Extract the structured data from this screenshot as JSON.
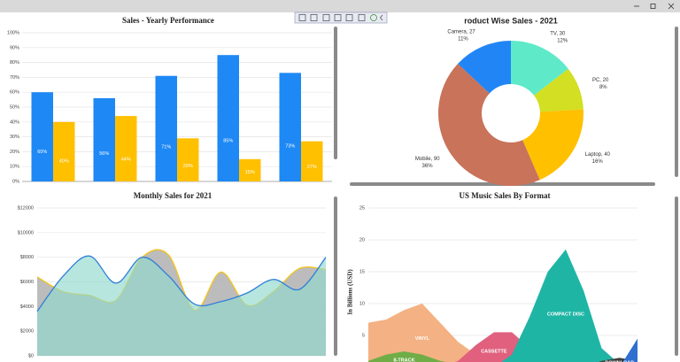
{
  "chart_data": [
    {
      "type": "bar",
      "title": "Sales - Yearly Performance",
      "categories": [
        null,
        null,
        null,
        null,
        null
      ],
      "series": [
        {
          "color": "#1e88f5",
          "values": [
            60,
            56,
            71,
            85,
            73
          ],
          "value_labels": [
            "60%",
            "56%",
            "71%",
            "85%",
            "73%"
          ]
        },
        {
          "color": "#ffc000",
          "values": [
            40,
            44,
            29,
            15,
            27
          ],
          "value_labels": [
            "40%",
            "44%",
            "29%",
            "15%",
            "27%"
          ]
        }
      ],
      "ylim": [
        0,
        100
      ],
      "yticks": [
        {
          "value": 0,
          "label": "0%"
        },
        {
          "value": 10,
          "label": "10%"
        },
        {
          "value": 20,
          "label": "20%"
        },
        {
          "value": 30,
          "label": "30%"
        },
        {
          "value": 40,
          "label": "40%"
        },
        {
          "value": 50,
          "label": "50%"
        },
        {
          "value": 60,
          "label": "60%"
        },
        {
          "value": 70,
          "label": "70%"
        },
        {
          "value": 80,
          "label": "80%"
        },
        {
          "value": 90,
          "label": "90%"
        },
        {
          "value": 100,
          "label": "100%"
        }
      ],
      "grid": true
    },
    {
      "type": "pie",
      "title": "roduct Wise Sales - 2021",
      "donut": true,
      "values": [
        30,
        20,
        40,
        90,
        27
      ],
      "value_labels": [
        "TV, 30",
        "PC, 20",
        "Laptop, 40",
        "Mobile, 90",
        "Camera, 27"
      ],
      "percents": [
        12,
        8,
        16,
        36,
        11
      ],
      "percent_labels": [
        "12%",
        "8%",
        "16%",
        "36%",
        "11%"
      ],
      "colors": [
        "#5eeac9",
        "#d2df22",
        "#ffc000",
        "#c8735a",
        "#2185f5"
      ]
    },
    {
      "type": "spline-area",
      "title": "Monthly Sales for 2021",
      "categories": [
        null,
        null,
        null,
        null,
        null,
        null,
        null,
        null,
        null,
        null,
        null,
        null
      ],
      "series": [
        {
          "color": "#f5c518",
          "fill": "#b5b5b5",
          "values": [
            6400,
            5200,
            4900,
            4500,
            8000,
            8200,
            3700,
            6800,
            4100,
            5200,
            7100,
            7000
          ]
        },
        {
          "color": "#2f7fd8",
          "fill": "#8fd9cc",
          "values": [
            3600,
            6500,
            8100,
            5900,
            8000,
            6500,
            4200,
            4400,
            5100,
            6200,
            5400,
            8000
          ]
        }
      ],
      "ylim": [
        0,
        12000
      ],
      "yticks": [
        {
          "value": 0,
          "label": "$0"
        },
        {
          "value": 2000,
          "label": "$2000"
        },
        {
          "value": 4000,
          "label": "$4000"
        },
        {
          "value": 6000,
          "label": "$6000"
        },
        {
          "value": 8000,
          "label": "$8000"
        },
        {
          "value": 10000,
          "label": "$10000"
        },
        {
          "value": 12000,
          "label": "$12000"
        }
      ],
      "grid": true
    },
    {
      "type": "area",
      "title": "US Music Sales By Format",
      "y_label": "In Billions (USD)",
      "categories": [
        null,
        null,
        null,
        null,
        null,
        null,
        null,
        null,
        null,
        null,
        null,
        null,
        null,
        null,
        null,
        null
      ],
      "series": [
        {
          "name": "VINYL",
          "color": "#f4b183",
          "values": [
            7,
            7.5,
            9,
            10,
            7,
            4,
            2,
            0.5,
            0,
            0,
            0,
            0,
            0,
            0,
            0,
            0
          ]
        },
        {
          "name": "8-TRACK",
          "color": "#70ad47",
          "values": [
            1,
            2,
            2.5,
            2,
            1,
            0.5,
            0,
            0,
            0,
            0,
            0,
            0,
            0,
            0,
            0,
            0
          ]
        },
        {
          "name": "CASSETTE",
          "color": "#e0607e",
          "values": [
            0,
            0,
            0,
            0,
            0,
            1,
            3.5,
            5.5,
            5.5,
            3,
            1,
            0,
            0,
            0,
            0,
            0
          ]
        },
        {
          "name": "COMPACT DISC",
          "color": "#1fb5a5",
          "values": [
            0,
            0,
            0,
            0,
            0,
            0,
            0,
            0,
            2,
            8,
            15,
            18.5,
            12,
            3,
            0.5,
            0
          ]
        },
        {
          "name": "DOWNLOAD",
          "color": "#404040",
          "values": [
            0,
            0,
            0,
            0,
            0,
            0,
            0,
            0,
            0,
            0,
            0,
            0,
            0,
            1,
            1.5,
            1
          ]
        },
        {
          "color": "#2e6fd0",
          "values": [
            0,
            0,
            0,
            0,
            0,
            0,
            0,
            0,
            0,
            0,
            0,
            0,
            0,
            0,
            0,
            4.5
          ]
        }
      ],
      "ylim": [
        0,
        25
      ],
      "yticks": [
        5,
        10,
        15,
        20,
        25
      ],
      "grid": true
    }
  ]
}
